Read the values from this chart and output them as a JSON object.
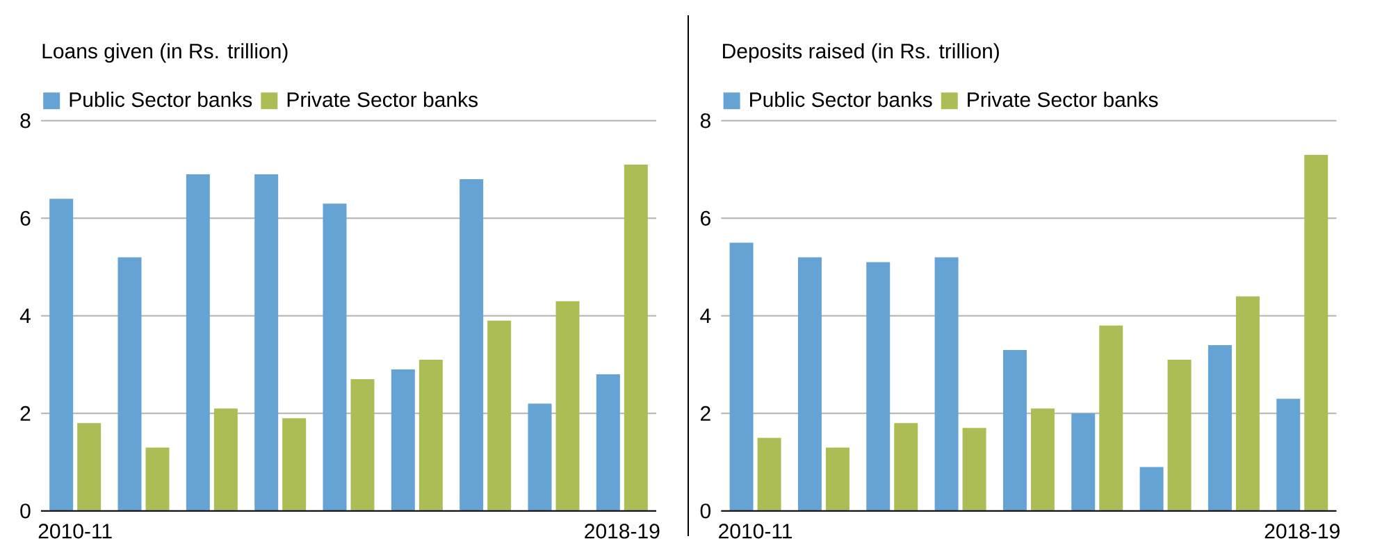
{
  "chart_data": [
    {
      "type": "bar",
      "title": "Loans given (in Rs. trillion)",
      "categories": [
        "2010-11",
        null,
        null,
        null,
        null,
        null,
        null,
        null,
        "2018-19"
      ],
      "series": [
        {
          "name": "Public Sector banks",
          "color": "#65a3d4",
          "values": [
            6.4,
            5.2,
            6.9,
            6.9,
            6.3,
            2.9,
            6.8,
            2.2,
            2.8
          ]
        },
        {
          "name": "Private Sector banks",
          "color": "#adbd55",
          "values": [
            1.8,
            1.3,
            2.1,
            1.9,
            2.7,
            3.1,
            3.9,
            4.3,
            7.1
          ]
        }
      ],
      "ylim": [
        0,
        8
      ],
      "yticks": [
        0,
        2,
        4,
        6,
        8
      ],
      "grid": "y",
      "legend": "top left"
    },
    {
      "type": "bar",
      "title": "Deposits raised (in Rs. trillion)",
      "categories": [
        "2010-11",
        null,
        null,
        null,
        null,
        null,
        null,
        null,
        "2018-19"
      ],
      "series": [
        {
          "name": "Public Sector banks",
          "color": "#65a3d4",
          "values": [
            5.5,
            5.2,
            5.1,
            5.2,
            3.3,
            2.0,
            0.9,
            3.4,
            2.3
          ]
        },
        {
          "name": "Private Sector banks",
          "color": "#adbd55",
          "values": [
            1.5,
            1.3,
            1.8,
            1.7,
            2.1,
            3.8,
            3.1,
            4.4,
            7.3
          ]
        }
      ],
      "ylim": [
        0,
        8
      ],
      "yticks": [
        0,
        2,
        4,
        6,
        8
      ],
      "grid": "y",
      "legend": "top left"
    }
  ]
}
